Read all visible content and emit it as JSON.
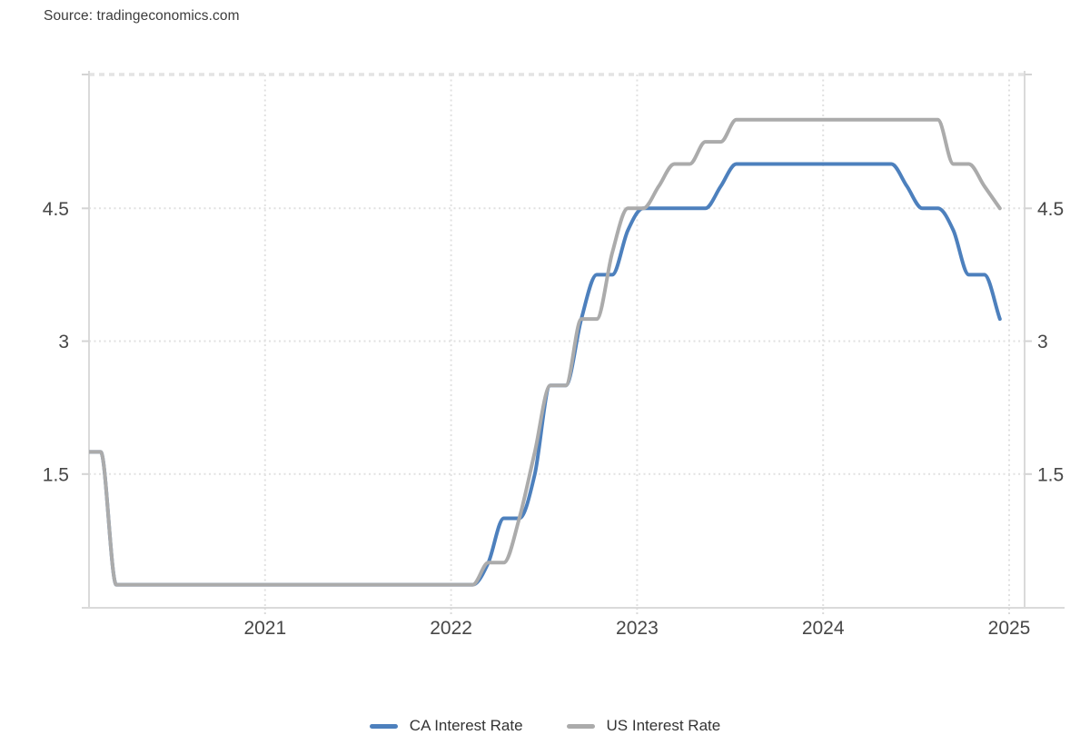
{
  "source": {
    "label": "Source: tradingeconomics.com"
  },
  "chart_data": {
    "type": "line",
    "title": "",
    "grid": true,
    "legend_position": "bottom",
    "x_axis": {
      "start": "2020-01",
      "end": "2024-12",
      "frequency": "monthly",
      "tick_labels": [
        "2021",
        "2022",
        "2023",
        "2024",
        "2025"
      ]
    },
    "y_axis": {
      "ticks": [
        1.5,
        3,
        4.5
      ],
      "range": [
        0,
        6
      ],
      "label_sides": "both"
    },
    "series": [
      {
        "name": "CA Interest Rate",
        "color": "#4d80bd",
        "values": [
          1.75,
          1.75,
          0.25,
          0.25,
          0.25,
          0.25,
          0.25,
          0.25,
          0.25,
          0.25,
          0.25,
          0.25,
          0.25,
          0.25,
          0.25,
          0.25,
          0.25,
          0.25,
          0.25,
          0.25,
          0.25,
          0.25,
          0.25,
          0.25,
          0.25,
          0.25,
          0.5,
          1.0,
          1.0,
          1.5,
          2.5,
          2.5,
          3.25,
          3.75,
          3.75,
          4.25,
          4.5,
          4.5,
          4.5,
          4.5,
          4.5,
          4.75,
          5.0,
          5.0,
          5.0,
          5.0,
          5.0,
          5.0,
          5.0,
          5.0,
          5.0,
          5.0,
          5.0,
          4.75,
          4.5,
          4.5,
          4.25,
          3.75,
          3.75,
          3.25
        ]
      },
      {
        "name": "US Interest Rate",
        "color": "#ababab",
        "values": [
          1.75,
          1.75,
          0.25,
          0.25,
          0.25,
          0.25,
          0.25,
          0.25,
          0.25,
          0.25,
          0.25,
          0.25,
          0.25,
          0.25,
          0.25,
          0.25,
          0.25,
          0.25,
          0.25,
          0.25,
          0.25,
          0.25,
          0.25,
          0.25,
          0.25,
          0.25,
          0.5,
          0.5,
          1.0,
          1.75,
          2.5,
          2.5,
          3.25,
          3.25,
          4.0,
          4.5,
          4.5,
          4.75,
          5.0,
          5.0,
          5.25,
          5.25,
          5.5,
          5.5,
          5.5,
          5.5,
          5.5,
          5.5,
          5.5,
          5.5,
          5.5,
          5.5,
          5.5,
          5.5,
          5.5,
          5.5,
          5.0,
          5.0,
          4.75,
          4.5
        ]
      }
    ]
  }
}
